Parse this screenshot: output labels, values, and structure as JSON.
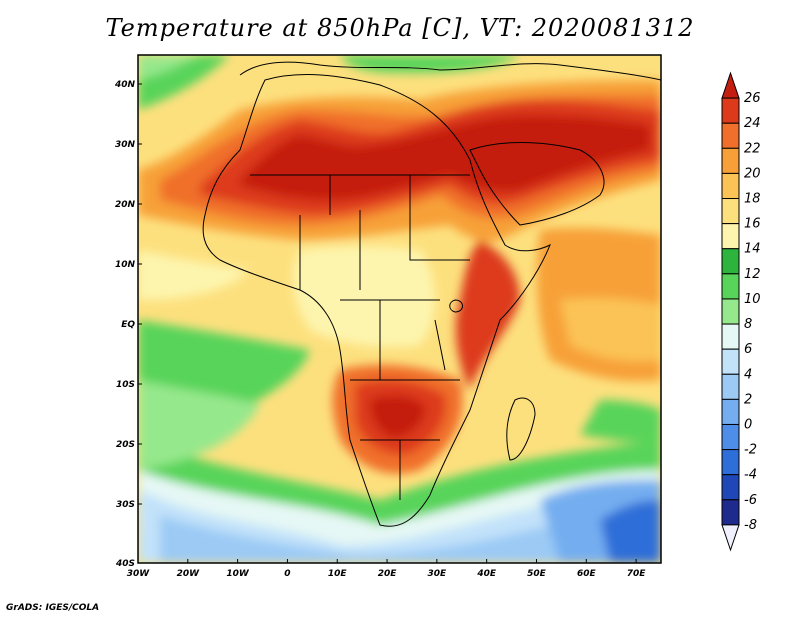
{
  "title": "Temperature at 850hPa [C], VT: 2020081312",
  "credit": "GrADS: IGES/COLA",
  "axes": {
    "lon_ticks": [
      "30W",
      "20W",
      "10W",
      "0",
      "10E",
      "20E",
      "30E",
      "40E",
      "50E",
      "60E",
      "70E"
    ],
    "lat_ticks": [
      "40N",
      "30N",
      "20N",
      "10N",
      "EQ",
      "10S",
      "20S",
      "30S",
      "40S"
    ]
  },
  "colorbar": {
    "levels": [
      "-8",
      "-6",
      "-4",
      "-2",
      "0",
      "2",
      "4",
      "6",
      "8",
      "10",
      "12",
      "14",
      "16",
      "18",
      "20",
      "22",
      "24",
      "26"
    ],
    "colors": [
      "#f0f0ff",
      "#1e2b8c",
      "#1f47b8",
      "#2e6ed8",
      "#4f8ee8",
      "#74aef0",
      "#9ccaf5",
      "#c2e2fa",
      "#e6f8f5",
      "#96e88c",
      "#58d45a",
      "#2cb43c",
      "#fdf5ae",
      "#fde07e",
      "#fbc355",
      "#f7a039",
      "#f0702b",
      "#dd3a1c",
      "#c41e10"
    ]
  }
}
